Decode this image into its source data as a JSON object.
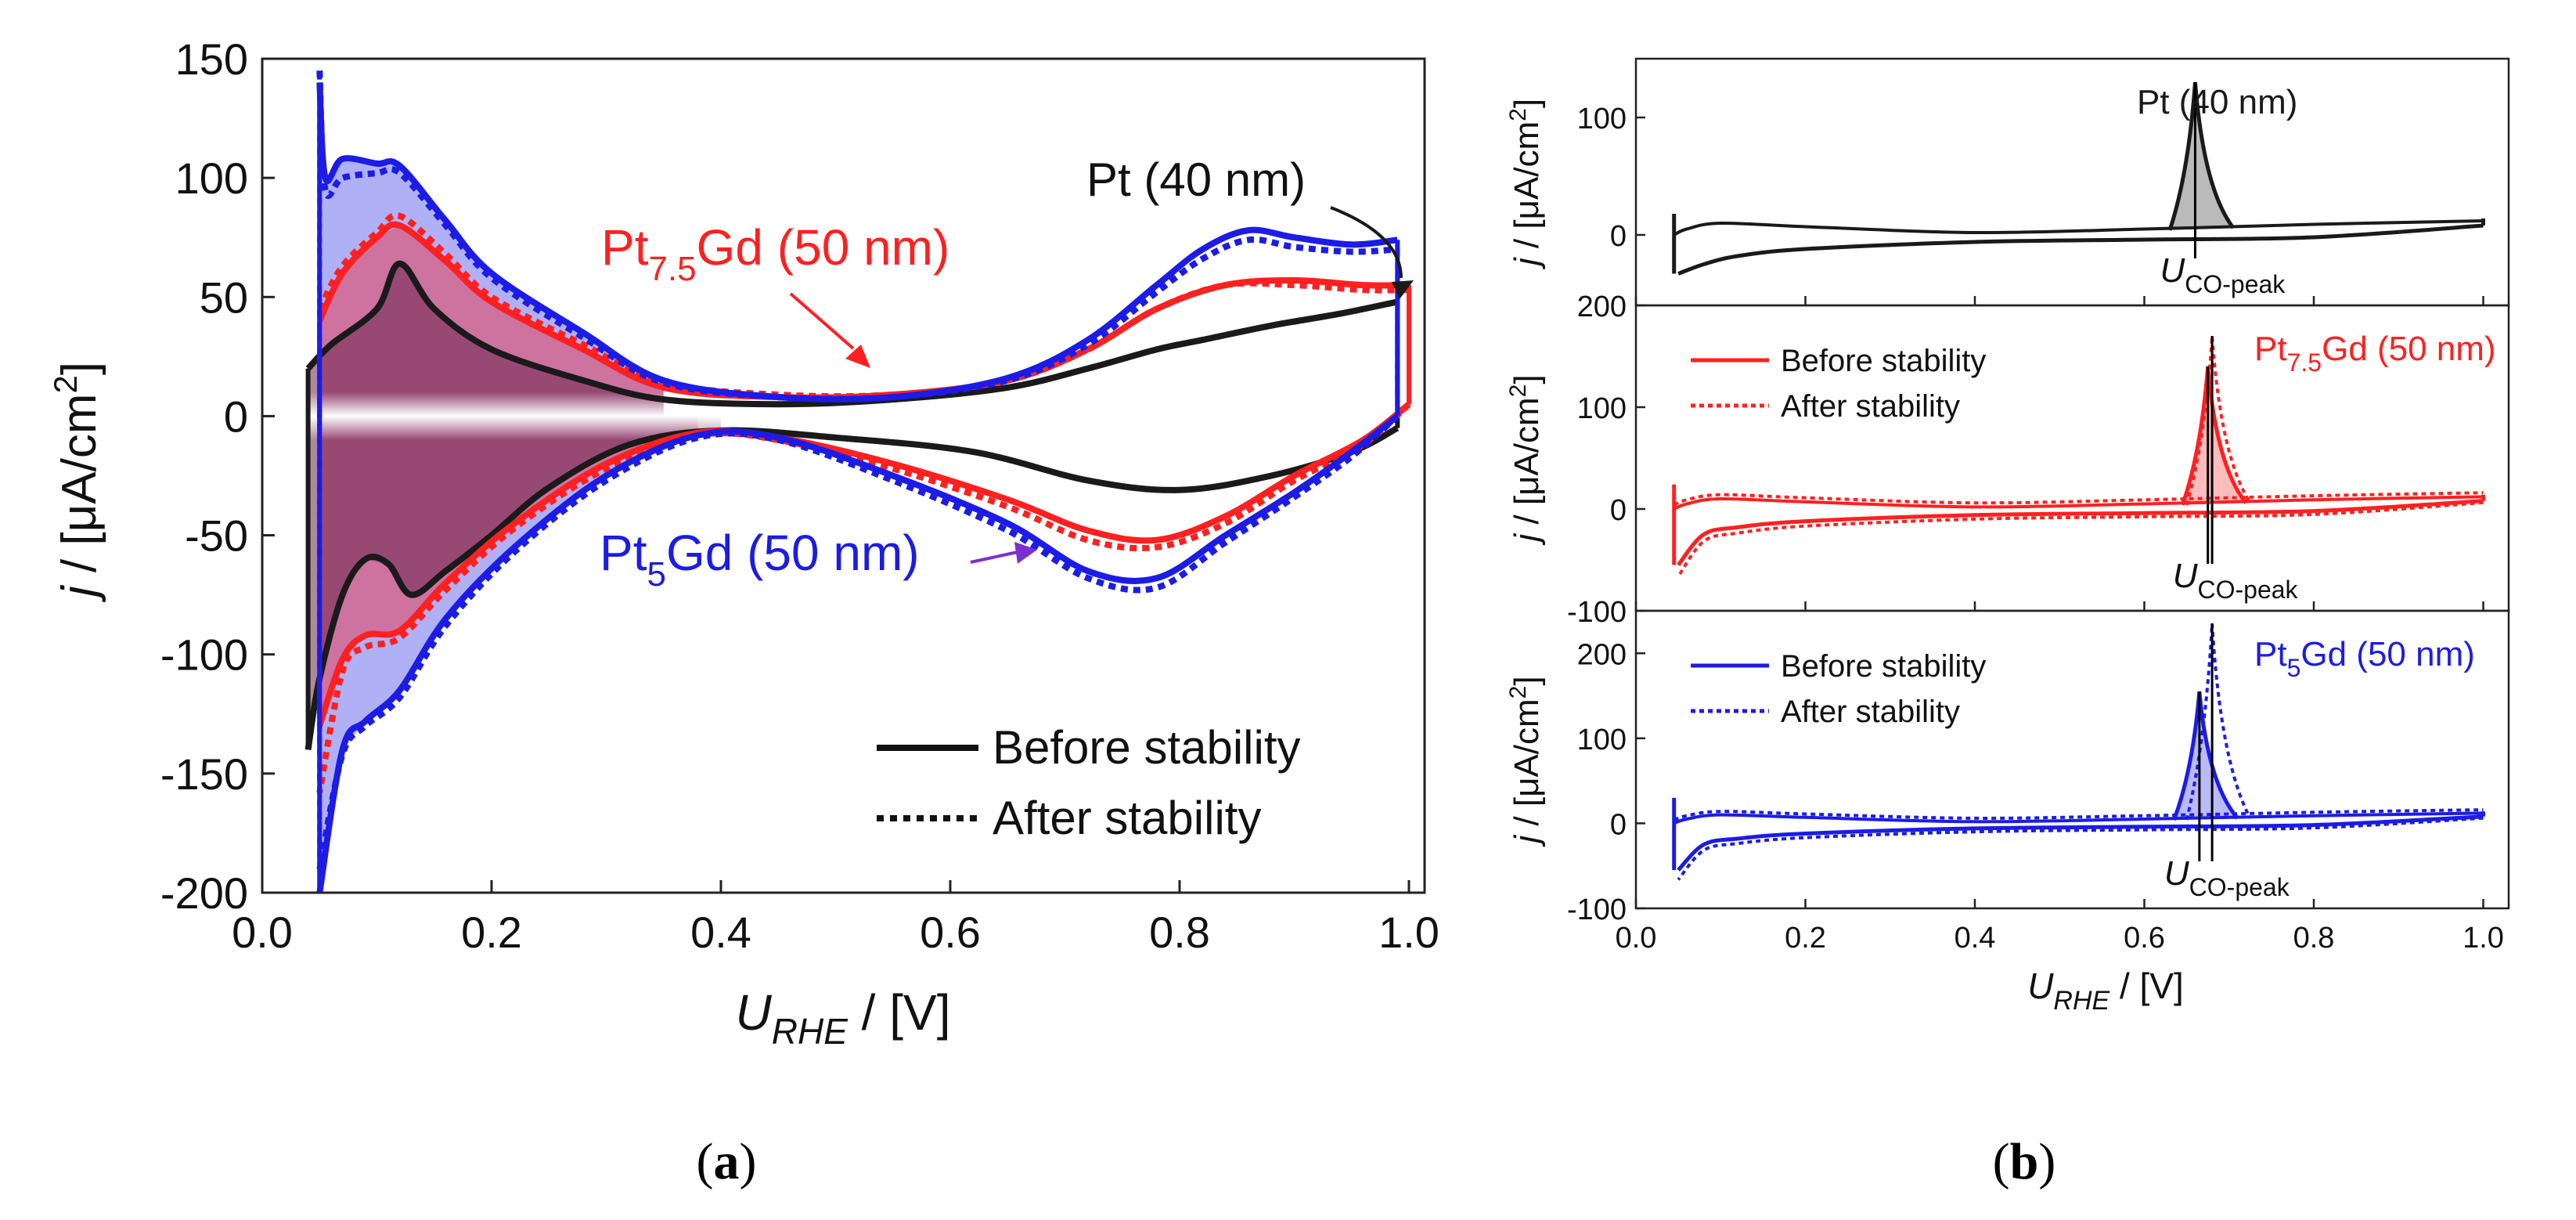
{
  "colors": {
    "pt": "#1a1a1a",
    "pt75gd": "#ff2020",
    "pt5gd": "#1c1ce6",
    "arrow_purple": "#7b2fd0"
  },
  "chart_data": [
    {
      "panel": "a",
      "type": "line",
      "caption": {
        "open": "(",
        "letter": "a",
        "close": ")"
      },
      "ylabel": {
        "j": "j",
        "rest": " / [μA/cm",
        "sup": "2",
        "end": "]"
      },
      "xlabel": {
        "U": "U",
        "sub": "RHE",
        "rest": " / [V]"
      },
      "xlim": [
        0.0,
        1.0
      ],
      "ylim": [
        -200,
        150
      ],
      "xticks": [
        "0.0",
        "0.2",
        "0.4",
        "0.6",
        "0.8",
        "1.0"
      ],
      "yticks": [
        "150",
        "100",
        "50",
        "0",
        "-50",
        "-100",
        "-150",
        "-200"
      ],
      "legend": {
        "position": "bottom-right",
        "before": "Before stability",
        "after": "After stability"
      },
      "labels": {
        "pt": "Pt (40 nm)",
        "pt75gd": {
          "base": "Pt",
          "sub": "7.5",
          "rest": "Gd (50 nm)"
        },
        "pt5gd": {
          "base": "Pt",
          "sub": "5",
          "rest": "Gd (50 nm)"
        }
      },
      "series": [
        {
          "name": "Pt (40 nm)",
          "color": "#1a1a1a",
          "style": "solid",
          "anodic": [
            [
              0.04,
              20
            ],
            [
              0.06,
              30
            ],
            [
              0.1,
              45
            ],
            [
              0.12,
              64
            ],
            [
              0.15,
              45
            ],
            [
              0.2,
              28
            ],
            [
              0.28,
              15
            ],
            [
              0.35,
              7
            ],
            [
              0.45,
              5
            ],
            [
              0.55,
              7
            ],
            [
              0.65,
              12
            ],
            [
              0.72,
              20
            ],
            [
              0.78,
              28
            ],
            [
              0.82,
              32
            ],
            [
              0.88,
              38
            ],
            [
              0.94,
              43
            ],
            [
              0.99,
              48
            ]
          ],
          "cathodic": [
            [
              0.99,
              -5
            ],
            [
              0.95,
              -15
            ],
            [
              0.88,
              -25
            ],
            [
              0.8,
              -31
            ],
            [
              0.72,
              -27
            ],
            [
              0.62,
              -15
            ],
            [
              0.5,
              -9
            ],
            [
              0.4,
              -6
            ],
            [
              0.32,
              -12
            ],
            [
              0.25,
              -30
            ],
            [
              0.2,
              -50
            ],
            [
              0.16,
              -65
            ],
            [
              0.13,
              -75
            ],
            [
              0.11,
              -62
            ],
            [
              0.09,
              -60
            ],
            [
              0.07,
              -75
            ],
            [
              0.05,
              -110
            ],
            [
              0.04,
              -140
            ]
          ]
        },
        {
          "name": "Pt7.5Gd (50 nm) before",
          "color": "#ff2020",
          "style": "solid",
          "anodic": [
            [
              0.05,
              40
            ],
            [
              0.07,
              60
            ],
            [
              0.1,
              75
            ],
            [
              0.12,
              80
            ],
            [
              0.16,
              65
            ],
            [
              0.2,
              48
            ],
            [
              0.28,
              28
            ],
            [
              0.35,
              12
            ],
            [
              0.45,
              8
            ],
            [
              0.55,
              9
            ],
            [
              0.65,
              15
            ],
            [
              0.72,
              28
            ],
            [
              0.78,
              45
            ],
            [
              0.84,
              55
            ],
            [
              0.9,
              57
            ],
            [
              0.96,
              55
            ],
            [
              1.0,
              55
            ]
          ],
          "cathodic": [
            [
              1.0,
              5
            ],
            [
              0.96,
              -10
            ],
            [
              0.9,
              -25
            ],
            [
              0.84,
              -42
            ],
            [
              0.78,
              -52
            ],
            [
              0.72,
              -48
            ],
            [
              0.65,
              -35
            ],
            [
              0.55,
              -20
            ],
            [
              0.45,
              -9
            ],
            [
              0.38,
              -7
            ],
            [
              0.3,
              -20
            ],
            [
              0.22,
              -45
            ],
            [
              0.16,
              -70
            ],
            [
              0.12,
              -90
            ],
            [
              0.09,
              -92
            ],
            [
              0.07,
              -102
            ],
            [
              0.05,
              -130
            ]
          ]
        },
        {
          "name": "Pt7.5Gd (50 nm) after",
          "color": "#ff2020",
          "style": "dotted",
          "anodic": [
            [
              0.05,
              45
            ],
            [
              0.07,
              63
            ],
            [
              0.1,
              77
            ],
            [
              0.12,
              84
            ],
            [
              0.16,
              68
            ],
            [
              0.2,
              50
            ],
            [
              0.28,
              30
            ],
            [
              0.35,
              14
            ],
            [
              0.45,
              9
            ],
            [
              0.55,
              9
            ],
            [
              0.65,
              15
            ],
            [
              0.72,
              28
            ],
            [
              0.78,
              45
            ],
            [
              0.84,
              55
            ],
            [
              0.9,
              55
            ],
            [
              0.96,
              53
            ],
            [
              1.0,
              53
            ]
          ],
          "cathodic": [
            [
              1.0,
              5
            ],
            [
              0.96,
              -12
            ],
            [
              0.9,
              -27
            ],
            [
              0.84,
              -45
            ],
            [
              0.78,
              -55
            ],
            [
              0.72,
              -52
            ],
            [
              0.65,
              -38
            ],
            [
              0.55,
              -22
            ],
            [
              0.45,
              -10
            ],
            [
              0.38,
              -8
            ],
            [
              0.3,
              -22
            ],
            [
              0.22,
              -47
            ],
            [
              0.16,
              -73
            ],
            [
              0.12,
              -93
            ],
            [
              0.09,
              -97
            ],
            [
              0.07,
              -107
            ],
            [
              0.05,
              -158
            ]
          ]
        },
        {
          "name": "Pt5Gd (50 nm) before",
          "color": "#1c1ce6",
          "style": "solid",
          "anodic": [
            [
              0.05,
              140
            ],
            [
              0.055,
              100
            ],
            [
              0.07,
              108
            ],
            [
              0.1,
              106
            ],
            [
              0.12,
              105
            ],
            [
              0.16,
              82
            ],
            [
              0.2,
              60
            ],
            [
              0.28,
              35
            ],
            [
              0.35,
              15
            ],
            [
              0.45,
              8
            ],
            [
              0.55,
              8
            ],
            [
              0.65,
              16
            ],
            [
              0.72,
              32
            ],
            [
              0.78,
              55
            ],
            [
              0.82,
              70
            ],
            [
              0.86,
              78
            ],
            [
              0.9,
              75
            ],
            [
              0.95,
              72
            ],
            [
              0.99,
              74
            ]
          ],
          "cathodic": [
            [
              0.99,
              0
            ],
            [
              0.95,
              -15
            ],
            [
              0.9,
              -32
            ],
            [
              0.84,
              -50
            ],
            [
              0.78,
              -68
            ],
            [
              0.72,
              -65
            ],
            [
              0.65,
              -45
            ],
            [
              0.55,
              -25
            ],
            [
              0.45,
              -9
            ],
            [
              0.38,
              -8
            ],
            [
              0.3,
              -25
            ],
            [
              0.22,
              -55
            ],
            [
              0.16,
              -85
            ],
            [
              0.12,
              -115
            ],
            [
              0.09,
              -128
            ],
            [
              0.07,
              -140
            ],
            [
              0.05,
              -200
            ]
          ]
        },
        {
          "name": "Pt5Gd (50 nm) after",
          "color": "#1c1ce6",
          "style": "dotted",
          "anodic": [
            [
              0.05,
              145
            ],
            [
              0.055,
              95
            ],
            [
              0.07,
              100
            ],
            [
              0.1,
              102
            ],
            [
              0.12,
              102
            ],
            [
              0.16,
              80
            ],
            [
              0.2,
              58
            ],
            [
              0.28,
              33
            ],
            [
              0.35,
              14
            ],
            [
              0.45,
              8
            ],
            [
              0.55,
              8
            ],
            [
              0.65,
              15
            ],
            [
              0.72,
              30
            ],
            [
              0.78,
              52
            ],
            [
              0.82,
              66
            ],
            [
              0.86,
              74
            ],
            [
              0.9,
              71
            ],
            [
              0.95,
              69
            ],
            [
              0.99,
              70
            ]
          ],
          "cathodic": [
            [
              0.99,
              0
            ],
            [
              0.95,
              -17
            ],
            [
              0.9,
              -34
            ],
            [
              0.84,
              -53
            ],
            [
              0.78,
              -72
            ],
            [
              0.72,
              -68
            ],
            [
              0.65,
              -48
            ],
            [
              0.55,
              -27
            ],
            [
              0.45,
              -10
            ],
            [
              0.38,
              -9
            ],
            [
              0.3,
              -27
            ],
            [
              0.22,
              -57
            ],
            [
              0.16,
              -88
            ],
            [
              0.12,
              -118
            ],
            [
              0.09,
              -130
            ],
            [
              0.07,
              -142
            ],
            [
              0.05,
              -190
            ]
          ]
        }
      ]
    },
    {
      "panel": "b",
      "type": "line",
      "caption": {
        "open": "(",
        "letter": "b",
        "close": ")"
      },
      "xlim": [
        0.0,
        1.0
      ],
      "xticks": [
        "0.0",
        "0.2",
        "0.4",
        "0.6",
        "0.8",
        "1.0"
      ],
      "xlabel": {
        "U": "U",
        "sub": "RHE",
        "rest": " / [V]"
      },
      "ylabel": {
        "j": "j",
        "rest": " / [μA/cm",
        "sup": "2",
        "end": "]"
      },
      "legend": {
        "before": "Before stability",
        "after": "After stability"
      },
      "ucopeak": {
        "U": "U",
        "sub": "CO-peak"
      },
      "subplots": [
        {
          "label": {
            "base": "Pt (40 nm)",
            "sub": "",
            "rest": ""
          },
          "color": "#1a1a1a",
          "ylim": [
            -60,
            150
          ],
          "yticks": [
            "100",
            "0"
          ],
          "yvals": [
            100,
            0
          ],
          "peak": 0.66,
          "peak_height": 130,
          "peak_after": null,
          "has_legend": false
        },
        {
          "label": {
            "base": "Pt",
            "sub": "7.5",
            "rest": "Gd (50 nm)"
          },
          "color": "#ff2020",
          "ylim": [
            -100,
            200
          ],
          "yticks": [
            "200",
            "100",
            "0",
            "-100"
          ],
          "yvals": [
            200,
            100,
            0,
            -100
          ],
          "peak": 0.675,
          "peak_height": 140,
          "peak_after": 0.68,
          "peak_after_height": 170,
          "has_legend": true
        },
        {
          "label": {
            "base": "Pt",
            "sub": "5",
            "rest": "Gd (50 nm)"
          },
          "color": "#1c1ce6",
          "ylim": [
            -100,
            250
          ],
          "yticks": [
            "200",
            "100",
            "0",
            "-100"
          ],
          "yvals": [
            200,
            100,
            0,
            -100
          ],
          "peak": 0.665,
          "peak_height": 155,
          "peak_after": 0.68,
          "peak_after_height": 235,
          "has_legend": true
        }
      ]
    }
  ]
}
